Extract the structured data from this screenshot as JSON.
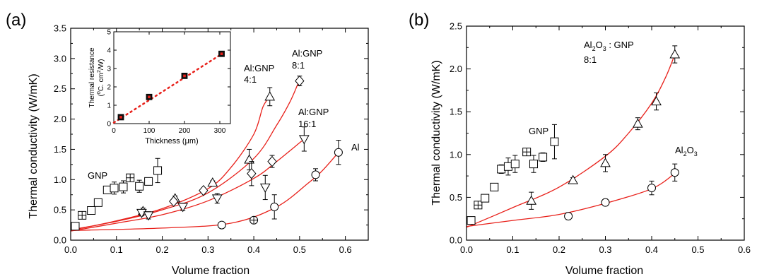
{
  "chart_data": [
    {
      "panel_label": "(a)",
      "type": "scatter",
      "xlabel": "Volume fraction",
      "ylabel": "Thermal conductivity (W/mK)",
      "xlim": [
        0.0,
        0.65
      ],
      "ylim": [
        0.0,
        3.5
      ],
      "xticks": [
        "0.0",
        "0.1",
        "0.2",
        "0.3",
        "0.4",
        "0.5",
        "0.6"
      ],
      "yticks": [
        "0.0",
        "0.5",
        "1.0",
        "1.5",
        "2.0",
        "2.5",
        "3.0",
        "3.5"
      ],
      "series": [
        {
          "name": "GNP",
          "points": [
            {
              "x": 0.01,
              "y": 0.23,
              "err": 0.02,
              "marker": "square"
            },
            {
              "x": 0.025,
              "y": 0.41,
              "err": 0.03,
              "marker": "boxplus"
            },
            {
              "x": 0.045,
              "y": 0.49,
              "err": 0.04,
              "marker": "square"
            },
            {
              "x": 0.06,
              "y": 0.62,
              "err": 0.04,
              "marker": "square"
            },
            {
              "x": 0.08,
              "y": 0.83,
              "err": 0.05,
              "marker": "square"
            },
            {
              "x": 0.095,
              "y": 0.86,
              "err": 0.1,
              "marker": "square"
            },
            {
              "x": 0.115,
              "y": 0.88,
              "err": 0.1,
              "marker": "square"
            },
            {
              "x": 0.13,
              "y": 1.03,
              "err": 0.04,
              "marker": "boxplus"
            },
            {
              "x": 0.15,
              "y": 0.89,
              "err": 0.1,
              "marker": "square"
            },
            {
              "x": 0.17,
              "y": 0.97,
              "err": 0.05,
              "marker": "square"
            },
            {
              "x": 0.19,
              "y": 1.15,
              "err": 0.2,
              "marker": "square"
            }
          ]
        },
        {
          "name": "Al:GNP 4:1",
          "marker": "triangle-up",
          "curve": [
            [
              0.0,
              0.16
            ],
            [
              0.1,
              0.32
            ],
            [
              0.2,
              0.52
            ],
            [
              0.3,
              0.85
            ],
            [
              0.35,
              1.2
            ],
            [
              0.4,
              1.75
            ],
            [
              0.42,
              2.2
            ],
            [
              0.435,
              2.37
            ]
          ],
          "points": [
            {
              "x": 0.158,
              "y": 0.48,
              "err": 0.05
            },
            {
              "x": 0.228,
              "y": 0.69,
              "err": 0.04
            },
            {
              "x": 0.31,
              "y": 0.95,
              "err": 0.03
            },
            {
              "x": 0.39,
              "y": 1.33,
              "err": 0.17
            },
            {
              "x": 0.435,
              "y": 2.37,
              "err": 0.15
            }
          ]
        },
        {
          "name": "Al:GNP 8:1",
          "marker": "diamond",
          "curve": [
            [
              0.0,
              0.17
            ],
            [
              0.1,
              0.31
            ],
            [
              0.2,
              0.5
            ],
            [
              0.3,
              0.78
            ],
            [
              0.4,
              1.35
            ],
            [
              0.45,
              1.9
            ],
            [
              0.48,
              2.3
            ],
            [
              0.5,
              2.65
            ]
          ],
          "points": [
            {
              "x": 0.225,
              "y": 0.64,
              "err": 0.04
            },
            {
              "x": 0.29,
              "y": 0.82,
              "err": 0.04
            },
            {
              "x": 0.395,
              "y": 1.1,
              "err": 0.2
            },
            {
              "x": 0.44,
              "y": 1.3,
              "err": 0.1
            },
            {
              "x": 0.5,
              "y": 2.63,
              "err": 0.08
            }
          ]
        },
        {
          "name": "Al:GNP 16:1",
          "marker": "triangle-down",
          "curve": [
            [
              0.0,
              0.15
            ],
            [
              0.1,
              0.28
            ],
            [
              0.2,
              0.42
            ],
            [
              0.3,
              0.65
            ],
            [
              0.4,
              1.02
            ],
            [
              0.45,
              1.3
            ],
            [
              0.51,
              1.67
            ]
          ],
          "points": [
            {
              "x": 0.155,
              "y": 0.45,
              "err": 0.05
            },
            {
              "x": 0.17,
              "y": 0.41,
              "err": 0.06
            },
            {
              "x": 0.245,
              "y": 0.55,
              "err": 0.06
            },
            {
              "x": 0.32,
              "y": 0.69,
              "err": 0.08
            },
            {
              "x": 0.425,
              "y": 0.87,
              "err": 0.2
            },
            {
              "x": 0.51,
              "y": 1.67,
              "err": 0.2
            }
          ]
        },
        {
          "name": "Al",
          "marker": "circle",
          "curve": [
            [
              0.0,
              0.16
            ],
            [
              0.2,
              0.2
            ],
            [
              0.35,
              0.28
            ],
            [
              0.45,
              0.55
            ],
            [
              0.52,
              0.95
            ],
            [
              0.55,
              1.15
            ],
            [
              0.585,
              1.45
            ]
          ],
          "points": [
            {
              "x": 0.33,
              "y": 0.25,
              "err": 0.02,
              "marker": "circle"
            },
            {
              "x": 0.4,
              "y": 0.33,
              "err": 0.03,
              "marker": "circle-plus"
            },
            {
              "x": 0.445,
              "y": 0.55,
              "err": 0.2,
              "marker": "circle"
            },
            {
              "x": 0.535,
              "y": 1.08,
              "err": 0.1,
              "marker": "circle"
            },
            {
              "x": 0.585,
              "y": 1.45,
              "err": 0.2,
              "marker": "circle"
            }
          ]
        }
      ],
      "annotations": {
        "gnp": "GNP",
        "al4_line1": "Al:GNP",
        "al4_line2": "4:1",
        "al8_line1": "Al:GNP",
        "al8_line2": "8:1",
        "al16_line1": "Al:GNP",
        "al16_line2": "16:1",
        "al": "Al"
      },
      "inset": {
        "type": "scatter",
        "xlabel_pre": "Thickness (",
        "xlabel_mu": "μ",
        "xlabel_post": "m)",
        "ylabel_line1": "Thermal resistance",
        "ylabel_line2_a": "(",
        "ylabel_line2_sup1": "0",
        "ylabel_line2_b": "C. cm",
        "ylabel_line2_sup2": "2",
        "ylabel_line2_c": "/W)",
        "xlim": [
          0,
          330
        ],
        "ylim": [
          0,
          5
        ],
        "xticks": [
          "0",
          "100",
          "200",
          "300"
        ],
        "yticks": [
          "0",
          "1",
          "2",
          "3",
          "4",
          "5"
        ],
        "points": [
          [
            20,
            0.35
          ],
          [
            100,
            1.45
          ],
          [
            200,
            2.6
          ],
          [
            305,
            3.8
          ]
        ],
        "fit_line": [
          [
            0,
            0.05
          ],
          [
            310,
            3.85
          ]
        ],
        "fit_color": "#e8201a"
      }
    },
    {
      "panel_label": "(b)",
      "type": "scatter",
      "xlabel": "Volume fraction",
      "ylabel": "Thermal conductivity (W/mK)",
      "xlim": [
        0.0,
        0.6
      ],
      "ylim": [
        0.0,
        2.5
      ],
      "xticks": [
        "0.0",
        "0.1",
        "0.2",
        "0.3",
        "0.4",
        "0.5",
        "0.6"
      ],
      "yticks": [
        "0.0",
        "0.5",
        "1.0",
        "1.5",
        "2.0",
        "2.5"
      ],
      "series": [
        {
          "name": "GNP",
          "points": [
            {
              "x": 0.01,
              "y": 0.23,
              "err": 0.02,
              "marker": "square"
            },
            {
              "x": 0.025,
              "y": 0.41,
              "err": 0.03,
              "marker": "boxplus"
            },
            {
              "x": 0.04,
              "y": 0.49,
              "err": 0.04,
              "marker": "square"
            },
            {
              "x": 0.06,
              "y": 0.62,
              "err": 0.04,
              "marker": "square"
            },
            {
              "x": 0.075,
              "y": 0.83,
              "err": 0.05,
              "marker": "square"
            },
            {
              "x": 0.09,
              "y": 0.86,
              "err": 0.1,
              "marker": "square"
            },
            {
              "x": 0.105,
              "y": 0.89,
              "err": 0.1,
              "marker": "square"
            },
            {
              "x": 0.13,
              "y": 1.03,
              "err": 0.03,
              "marker": "boxplus"
            },
            {
              "x": 0.145,
              "y": 0.89,
              "err": 0.1,
              "marker": "square"
            },
            {
              "x": 0.165,
              "y": 0.97,
              "err": 0.05,
              "marker": "square"
            },
            {
              "x": 0.19,
              "y": 1.15,
              "err": 0.2,
              "marker": "square"
            }
          ]
        },
        {
          "name": "Al2O3 : GNP 8:1",
          "marker": "triangle-up",
          "curve": [
            [
              0.0,
              0.15
            ],
            [
              0.1,
              0.38
            ],
            [
              0.2,
              0.62
            ],
            [
              0.3,
              0.98
            ],
            [
              0.35,
              1.25
            ],
            [
              0.4,
              1.6
            ],
            [
              0.43,
              1.9
            ],
            [
              0.45,
              2.17
            ]
          ],
          "points": [
            {
              "x": 0.14,
              "y": 0.46,
              "err": 0.1
            },
            {
              "x": 0.23,
              "y": 0.7,
              "err": 0.03
            },
            {
              "x": 0.3,
              "y": 0.9,
              "err": 0.1
            },
            {
              "x": 0.37,
              "y": 1.36,
              "err": 0.07
            },
            {
              "x": 0.41,
              "y": 1.62,
              "err": 0.1
            },
            {
              "x": 0.45,
              "y": 2.17,
              "err": 0.1
            }
          ]
        },
        {
          "name": "Al2O3",
          "marker": "circle",
          "curve": [
            [
              0.0,
              0.16
            ],
            [
              0.1,
              0.23
            ],
            [
              0.2,
              0.3
            ],
            [
              0.3,
              0.43
            ],
            [
              0.4,
              0.6
            ],
            [
              0.45,
              0.78
            ]
          ],
          "points": [
            {
              "x": 0.22,
              "y": 0.28,
              "err": 0.04
            },
            {
              "x": 0.3,
              "y": 0.44,
              "err": 0.04
            },
            {
              "x": 0.4,
              "y": 0.61,
              "err": 0.08
            },
            {
              "x": 0.45,
              "y": 0.79,
              "err": 0.1
            }
          ]
        }
      ],
      "annotations": {
        "gnp": "GNP",
        "comp_line1_a": "Al",
        "comp_line1_sub1": "2",
        "comp_line1_b": "O",
        "comp_line1_sub2": "3",
        "comp_line1_c": " : GNP",
        "comp_line2": "8:1",
        "alumina_a": "Al",
        "alumina_sub1": "2",
        "alumina_b": "O",
        "alumina_sub2": "3"
      }
    }
  ],
  "colors": {
    "curve": "#e8201a",
    "marker": "#000000",
    "inset_square_fill": "#e8201a"
  }
}
